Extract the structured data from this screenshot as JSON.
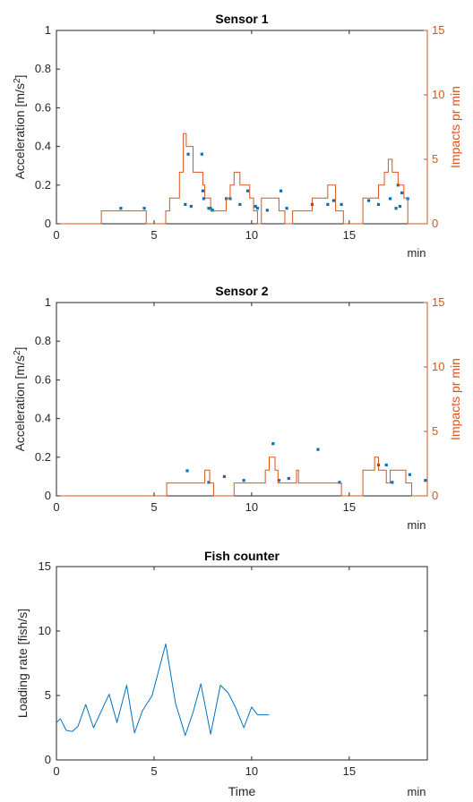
{
  "chart_data": [
    {
      "type": "scatter",
      "title": "Sensor 1",
      "xlabel": "min",
      "ylabel": "Acceleration [m/s²]",
      "ylabel_base": "Acceleration [m/s",
      "ylabel_sup": "2",
      "ylabel_end": "]",
      "y2label": "Impacts pr min",
      "xlim": [
        0,
        19
      ],
      "ylim": [
        0,
        1
      ],
      "y2lim": [
        0,
        15
      ],
      "x_ticks": [
        "0",
        "5",
        "10",
        "15"
      ],
      "y_ticks": [
        "0",
        "0.2",
        "0.4",
        "0.6",
        "0.8",
        "1"
      ],
      "y2_ticks": [
        "0",
        "5",
        "10",
        "15"
      ],
      "colors": {
        "scatter": "#0072bd",
        "step": "#d95319"
      },
      "series": [
        {
          "kind": "scatter",
          "axis": "left",
          "x": [
            3.3,
            4.5,
            6.6,
            6.75,
            6.9,
            7.45,
            7.5,
            7.55,
            7.8,
            7.9,
            8.0,
            8.7,
            8.9,
            9.4,
            9.8,
            10.2,
            10.3,
            10.8,
            11.5,
            11.8,
            13.1,
            13.9,
            14.2,
            14.6,
            16.0,
            16.5,
            17.1,
            17.4,
            17.5,
            17.6,
            17.7,
            18.0
          ],
          "y": [
            0.08,
            0.08,
            0.1,
            0.36,
            0.09,
            0.36,
            0.17,
            0.13,
            0.08,
            0.08,
            0.07,
            0.13,
            0.13,
            0.1,
            0.17,
            0.09,
            0.08,
            0.07,
            0.17,
            0.08,
            0.1,
            0.1,
            0.12,
            0.1,
            0.12,
            0.1,
            0.13,
            0.08,
            0.2,
            0.09,
            0.16,
            0.13
          ]
        },
        {
          "kind": "step",
          "axis": "right",
          "x": [
            0,
            2.3,
            2.3,
            4.6,
            4.6,
            5.6,
            5.6,
            5.8,
            5.8,
            6.3,
            6.3,
            6.5,
            6.5,
            6.65,
            6.65,
            6.9,
            6.9,
            7.0,
            7.0,
            7.5,
            7.5,
            7.6,
            7.6,
            7.9,
            7.9,
            8.7,
            8.7,
            8.9,
            8.9,
            9.1,
            9.1,
            9.4,
            9.4,
            9.9,
            9.9,
            10.1,
            10.1,
            10.3,
            10.3,
            10.5,
            10.5,
            11.4,
            11.4,
            11.7,
            11.7,
            12.1,
            12.1,
            13.1,
            13.1,
            13.9,
            13.9,
            14.3,
            14.3,
            14.7,
            14.7,
            15.7,
            15.7,
            16.5,
            16.5,
            16.8,
            16.8,
            17.0,
            17.0,
            17.2,
            17.2,
            17.5,
            17.5,
            17.8,
            17.8,
            18.0,
            18.0,
            19.0
          ],
          "y": [
            0,
            0,
            1,
            1,
            0,
            0,
            1,
            1,
            2,
            2,
            4,
            4,
            7,
            7,
            6,
            6,
            6,
            6,
            4,
            4,
            3,
            3,
            2,
            2,
            1,
            1,
            2,
            2,
            3,
            3,
            4,
            4,
            3,
            3,
            2,
            2,
            1,
            1,
            0,
            0,
            2,
            2,
            1,
            1,
            0,
            0,
            1,
            1,
            2,
            2,
            3,
            3,
            1,
            1,
            0,
            0,
            2,
            2,
            3,
            3,
            4,
            4,
            5,
            5,
            4,
            4,
            3,
            3,
            2,
            2,
            0,
            0
          ]
        }
      ]
    },
    {
      "type": "scatter",
      "title": "Sensor 2",
      "xlabel": "min",
      "ylabel": "Acceleration [m/s²]",
      "ylabel_base": "Acceleration [m/s",
      "ylabel_sup": "2",
      "ylabel_end": "]",
      "y2label": "Impacts pr min",
      "xlim": [
        0,
        19
      ],
      "ylim": [
        0,
        1
      ],
      "y2lim": [
        0,
        15
      ],
      "x_ticks": [
        "0",
        "5",
        "10",
        "15"
      ],
      "y_ticks": [
        "0",
        "0.2",
        "0.4",
        "0.6",
        "0.8",
        "1"
      ],
      "y2_ticks": [
        "0",
        "5",
        "10",
        "15"
      ],
      "colors": {
        "scatter": "#0072bd",
        "step": "#d95319"
      },
      "series": [
        {
          "kind": "scatter",
          "axis": "left",
          "x": [
            6.7,
            7.8,
            8.6,
            9.6,
            11.1,
            11.4,
            11.9,
            13.4,
            14.5,
            16.5,
            16.9,
            17.2,
            18.1,
            18.9
          ],
          "y": [
            0.13,
            0.07,
            0.1,
            0.08,
            0.27,
            0.08,
            0.09,
            0.24,
            0.07,
            0.16,
            0.16,
            0.07,
            0.11,
            0.08
          ]
        },
        {
          "kind": "step",
          "axis": "right",
          "x": [
            0,
            5.65,
            5.65,
            7.6,
            7.6,
            7.85,
            7.85,
            8.05,
            8.05,
            9.1,
            9.1,
            10.7,
            10.7,
            10.9,
            10.9,
            11.2,
            11.2,
            11.35,
            11.35,
            11.55,
            11.55,
            12.3,
            12.3,
            12.4,
            12.4,
            14.6,
            14.6,
            15.7,
            15.7,
            16.3,
            16.3,
            16.5,
            16.5,
            16.9,
            16.9,
            17.1,
            17.1,
            17.9,
            17.9,
            18.2,
            18.2,
            19.0
          ],
          "y": [
            0,
            0,
            1,
            1,
            2,
            2,
            1,
            1,
            0,
            0,
            1,
            1,
            2,
            2,
            3,
            3,
            2,
            2,
            1,
            1,
            1,
            1,
            2,
            2,
            1,
            1,
            0,
            0,
            2,
            2,
            3,
            3,
            2,
            2,
            1,
            1,
            2,
            2,
            1,
            1,
            0,
            0
          ]
        }
      ]
    },
    {
      "type": "line",
      "title": "Fish counter",
      "xlabel": "Time",
      "xunit": "min",
      "ylabel": "Loading rate [fish/s]",
      "xlim": [
        0,
        19
      ],
      "ylim": [
        0,
        15
      ],
      "x_ticks": [
        "0",
        "5",
        "10",
        "15"
      ],
      "y_ticks": [
        "0",
        "5",
        "10",
        "15"
      ],
      "colors": {
        "line": "#0072bd"
      },
      "series": [
        {
          "kind": "line",
          "axis": "left",
          "x": [
            0,
            0.2,
            0.5,
            0.8,
            1.1,
            1.5,
            1.9,
            2.3,
            2.7,
            3.1,
            3.6,
            4.0,
            4.4,
            4.9,
            5.6,
            6.1,
            6.6,
            7.0,
            7.4,
            7.9,
            8.4,
            8.8,
            9.2,
            9.6,
            10.0,
            10.3,
            10.6,
            10.9
          ],
          "y": [
            2.9,
            3.2,
            2.3,
            2.2,
            2.6,
            4.3,
            2.5,
            3.8,
            5.1,
            2.9,
            5.8,
            2.1,
            3.8,
            5.0,
            9.0,
            4.4,
            1.9,
            3.7,
            5.9,
            2.0,
            5.8,
            5.2,
            4.0,
            2.5,
            4.1,
            3.5,
            3.5,
            3.5
          ]
        }
      ]
    }
  ]
}
